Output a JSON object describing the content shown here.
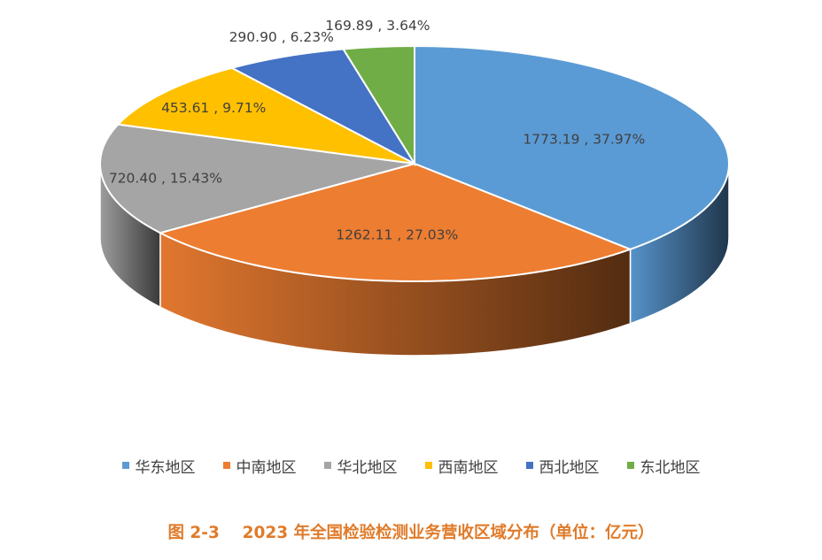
{
  "chart_data": {
    "type": "pie",
    "style": "3d",
    "categories": [
      "华东地区",
      "中南地区",
      "华北地区",
      "西南地区",
      "西北地区",
      "东北地区"
    ],
    "values": [
      1773.19,
      1262.11,
      720.4,
      453.61,
      290.9,
      169.89
    ],
    "percentages": [
      "37.97%",
      "27.03%",
      "15.43%",
      "9.71%",
      "6.23%",
      "3.64%"
    ],
    "data_labels": [
      "1773.19 , 37.97%",
      "1262.11 , 27.03%",
      "720.40 , 15.43%",
      "453.61 , 9.71%",
      "290.90 , 6.23%",
      "169.89 , 3.64%"
    ],
    "colors": [
      "#5b9bd5",
      "#ed7d31",
      "#a5a5a5",
      "#ffc000",
      "#4472c4",
      "#70ad47"
    ],
    "legend_position": "bottom",
    "caption": "图 2-3    2023 年全国检验检测业务营收区域分布（单位：亿元）"
  }
}
